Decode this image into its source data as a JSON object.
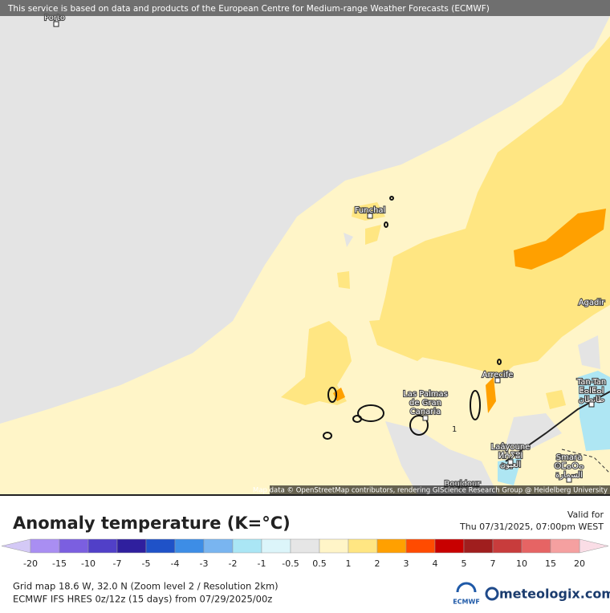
{
  "banner": "This service is based on data and products of the European Centre for Medium-range Weather Forecasts (ECMWF)",
  "map": {
    "labels": [
      {
        "lines": [
          "Porto"
        ]
      },
      {
        "lines": [
          "Funchal"
        ]
      },
      {
        "lines": [
          "Las Palmas",
          "de Gran",
          "Canaria"
        ]
      },
      {
        "lines": [
          "Arrecife"
        ]
      },
      {
        "lines": [
          "Agadir"
        ]
      },
      {
        "lines": [
          "Tan-Tan",
          "ⵟⴰⵏⵟⴰⵏ",
          "طانطان"
        ]
      },
      {
        "lines": [
          "Laâyoune",
          "ⵍⵄⵢⵓⵏ",
          "العيون"
        ]
      },
      {
        "lines": [
          "Smara",
          "ⵙⵎⴰⵔⴰ",
          "السمارة"
        ]
      },
      {
        "lines": [
          "Boujdour"
        ]
      }
    ],
    "contour_label": "1",
    "attribution": "Map data © OpenStreetMap contributors, rendering GIScience Research Group @ Heidelberg University"
  },
  "legend": {
    "title": "Anomaly temperature (K=°C)",
    "valid_label": "Valid for",
    "valid_time": "Thu 07/31/2025, 07:00pm WEST",
    "ticks": [
      -20,
      -15,
      -10,
      -7,
      -5,
      -4,
      -3,
      -2,
      -1,
      -0.5,
      0.5,
      1,
      2,
      3,
      4,
      5,
      7,
      10,
      15,
      20
    ],
    "colors": [
      "#a98ef2",
      "#7b5fe0",
      "#5140c8",
      "#2f1f9e",
      "#1f52c8",
      "#3d8de6",
      "#79b5f0",
      "#aae6f5",
      "#dcf5fa",
      "#e6e6e6",
      "#fff5c8",
      "#ffe682",
      "#ffa000",
      "#ff4b00",
      "#c80000",
      "#a01e1e",
      "#c83c3c",
      "#e66464",
      "#f5a0a0"
    ],
    "under_color": "#d4c9f6",
    "over_color": "#fadde6"
  },
  "footer": {
    "grid_info": "Grid map 18.6 W, 32.0 N (Zoom level 2 / Resolution 2km)",
    "model_info": "ECMWF IFS HRES 0z/12z (15 days) from  07/29/2025/00z",
    "ecmwf_logo": "ECMWF",
    "site": "meteologix.com"
  }
}
